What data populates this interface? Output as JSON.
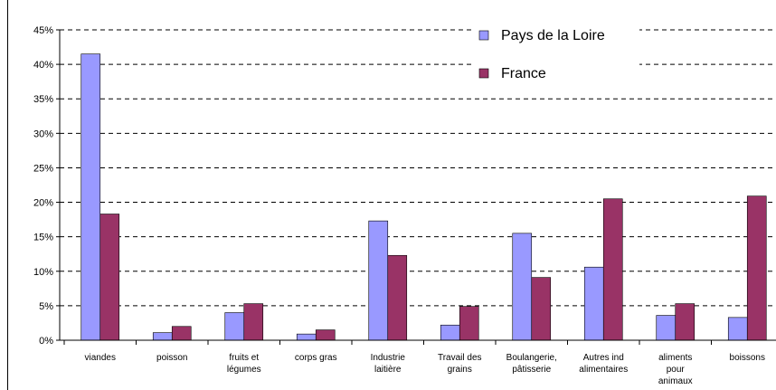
{
  "chart_data": {
    "type": "bar",
    "categories": [
      "viandes",
      "poisson",
      "fruits et\nlégumes",
      "corps gras",
      "Industrie\nlaitière",
      "Travail des\ngrains",
      "Boulangerie,\npâtisserie",
      "Autres ind\nalimentaires",
      "aliments\npour\nanimaux",
      "boissons"
    ],
    "series": [
      {
        "name": "Pays de la Loire",
        "color": "#9999ff",
        "values": [
          41.5,
          1.1,
          4.0,
          0.9,
          17.3,
          2.2,
          15.5,
          10.6,
          3.6,
          3.3
        ]
      },
      {
        "name": "France",
        "color": "#993366",
        "values": [
          18.3,
          2.0,
          5.3,
          1.5,
          12.3,
          4.9,
          9.1,
          20.5,
          5.3,
          20.9
        ]
      }
    ],
    "ylim": [
      0,
      45
    ],
    "yticks": [
      {
        "value": 0,
        "label": "0%"
      },
      {
        "value": 5,
        "label": "5%"
      },
      {
        "value": 10,
        "label": "10%"
      },
      {
        "value": 15,
        "label": "15%"
      },
      {
        "value": 20,
        "label": "20%"
      },
      {
        "value": 25,
        "label": "25%"
      },
      {
        "value": 30,
        "label": "30%"
      },
      {
        "value": 35,
        "label": "35%"
      },
      {
        "value": 40,
        "label": "40%"
      },
      {
        "value": 45,
        "label": "45%"
      }
    ],
    "grid": true,
    "legend": "top-right"
  }
}
